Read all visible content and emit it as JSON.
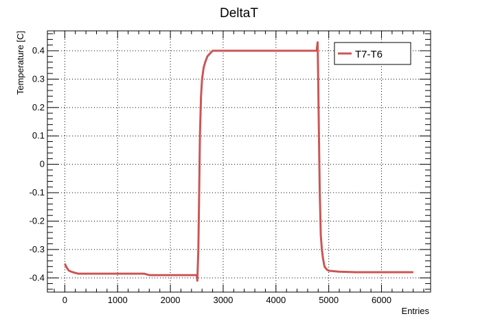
{
  "chart_data": {
    "type": "line",
    "title": "DeltaT",
    "xlabel": "Entries",
    "ylabel": "Temperature [C]",
    "xlim": [
      -330,
      6930
    ],
    "ylim": [
      -0.45,
      0.47
    ],
    "x_ticks": [
      0,
      1000,
      2000,
      3000,
      4000,
      5000,
      6000
    ],
    "y_ticks": [
      -0.4,
      -0.3,
      -0.2,
      -0.1,
      0,
      0.1,
      0.2,
      0.3,
      0.4
    ],
    "x_tick_labels": [
      "0",
      "1000",
      "2000",
      "3000",
      "4000",
      "5000",
      "6000"
    ],
    "y_tick_labels": [
      "-0.4",
      "-0.3",
      "-0.2",
      "-0.1",
      "0",
      "0.1",
      "0.2",
      "0.3",
      "0.4"
    ],
    "grid": true,
    "legend_position": "top-right",
    "series": [
      {
        "name": "T7-T6",
        "color": "#cc5555",
        "x": [
          0,
          40,
          80,
          150,
          250,
          350,
          500,
          650,
          800,
          1000,
          1200,
          1500,
          1600,
          2000,
          2300,
          2500,
          2510,
          2530,
          2545,
          2560,
          2580,
          2600,
          2630,
          2660,
          2700,
          2750,
          2800,
          3000,
          3500,
          4000,
          4500,
          4700,
          4770,
          4790,
          4800,
          4815,
          4830,
          4850,
          4870,
          4890,
          4920,
          4960,
          5000,
          5200,
          5500,
          6000,
          6500,
          6600
        ],
        "y": [
          -0.35,
          -0.365,
          -0.375,
          -0.38,
          -0.385,
          -0.385,
          -0.385,
          -0.385,
          -0.385,
          -0.385,
          -0.385,
          -0.385,
          -0.39,
          -0.39,
          -0.39,
          -0.39,
          -0.41,
          -0.3,
          -0.1,
          0.1,
          0.24,
          0.3,
          0.34,
          0.36,
          0.38,
          0.39,
          0.4,
          0.4,
          0.4,
          0.4,
          0.4,
          0.4,
          0.4,
          0.43,
          0.3,
          0.1,
          -0.1,
          -0.25,
          -0.3,
          -0.33,
          -0.36,
          -0.37,
          -0.375,
          -0.378,
          -0.38,
          -0.38,
          -0.38,
          -0.38
        ]
      }
    ]
  }
}
